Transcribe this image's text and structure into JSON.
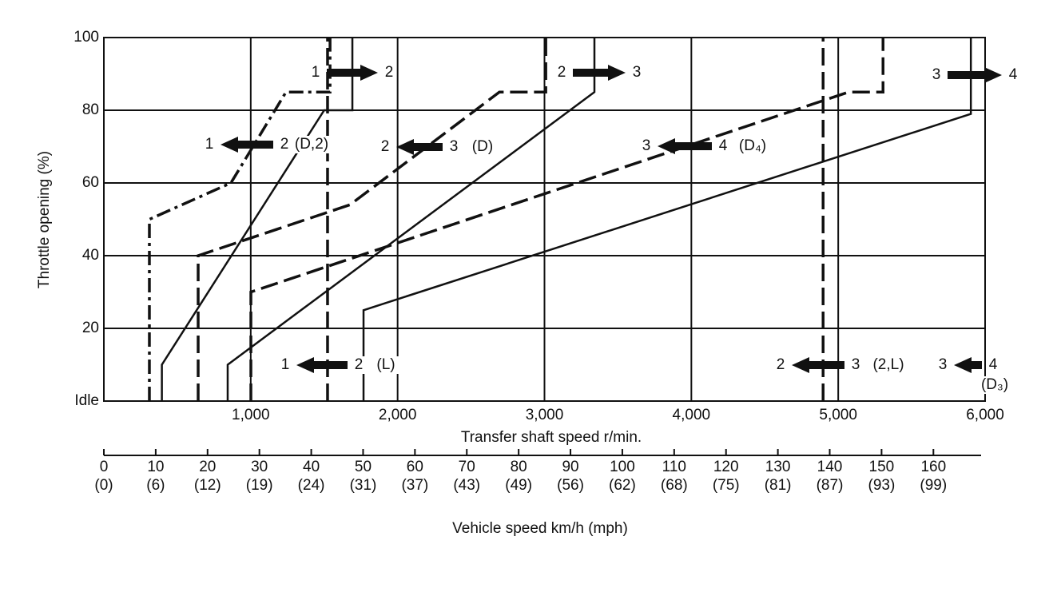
{
  "chart_data": {
    "type": "line",
    "ylabel": "Throttle opening (%)",
    "xlabel": "Transfer shaft speed r/min.",
    "x2label": "Vehicle speed  km/h (mph)",
    "xlim": [
      0,
      6000
    ],
    "xticks": [
      {
        "value": 1000,
        "label": "1,000"
      },
      {
        "value": 2000,
        "label": "2,000"
      },
      {
        "value": 3000,
        "label": "3,000"
      },
      {
        "value": 4000,
        "label": "4,000"
      },
      {
        "value": 5000,
        "label": "5,000"
      },
      {
        "value": 6000,
        "label": "6,000"
      }
    ],
    "ylim": [
      0,
      100
    ],
    "yticks": [
      {
        "value": 0,
        "label": "Idle"
      },
      20,
      40,
      60,
      80,
      100
    ],
    "grid": true,
    "x2lim": [
      0,
      169.2
    ],
    "x2ticks": [
      0,
      10,
      20,
      30,
      40,
      50,
      60,
      70,
      80,
      90,
      100,
      110,
      120,
      130,
      140,
      150,
      160
    ],
    "x2tick_mph_labels": [
      "(0)",
      "(6)",
      "(12)",
      "(19)",
      "(24)",
      "(31)",
      "(37)",
      "(43)",
      "(49)",
      "(56)",
      "(62)",
      "(68)",
      "(75)",
      "(81)",
      "(87)",
      "(93)",
      "(99)"
    ],
    "series": [
      {
        "color": "#111",
        "style": "dashdot",
        "x": [
          310,
          310,
          865,
          1240,
          1540,
          1540
        ],
        "values": [
          0,
          50,
          60,
          85,
          85,
          100
        ]
      },
      {
        "color": "#111",
        "style": "solid",
        "x": [
          395,
          395,
          1500,
          1692,
          1692
        ],
        "values": [
          0,
          10,
          80,
          80,
          100
        ]
      },
      {
        "color": "#111",
        "style": "dashed",
        "x": [
          1523,
          1523
        ],
        "values": [
          0,
          100
        ]
      },
      {
        "color": "#111",
        "style": "dashed",
        "x": [
          642,
          642,
          1676,
          2693,
          3009,
          3009
        ],
        "values": [
          0,
          40,
          54,
          85,
          85,
          100
        ]
      },
      {
        "color": "#111",
        "style": "solid",
        "x": [
          843,
          843,
          3340,
          3340
        ],
        "values": [
          0,
          10,
          85,
          100
        ]
      },
      {
        "color": "#111",
        "style": "dashed",
        "x": [
          1001,
          1001,
          5071,
          5305,
          5305
        ],
        "values": [
          0,
          30,
          85,
          85,
          100
        ]
      },
      {
        "color": "#111",
        "style": "solid",
        "x": [
          1768,
          1768,
          5903,
          5903
        ],
        "values": [
          0,
          25,
          79,
          100
        ]
      },
      {
        "color": "#111",
        "style": "dashed",
        "x": [
          4897,
          4897
        ],
        "values": [
          0,
          100
        ]
      }
    ],
    "annotations": [
      {
        "from": "1",
        "to": "2"
      },
      {
        "from": "2",
        "to": "3"
      },
      {
        "from": "3",
        "to": "4"
      },
      {
        "from": "1",
        "to": "2",
        "note": "(D,2)"
      },
      {
        "from": "2",
        "to": "3",
        "note": "(D)"
      },
      {
        "from": "3",
        "to": "4",
        "note": "(D₄)"
      },
      {
        "from": "1",
        "to": "2",
        "note": "(L)"
      },
      {
        "from": "2",
        "to": "3",
        "note": "(2,L)"
      },
      {
        "from": "3",
        "to": "4",
        "note": "(D₃)"
      }
    ]
  }
}
